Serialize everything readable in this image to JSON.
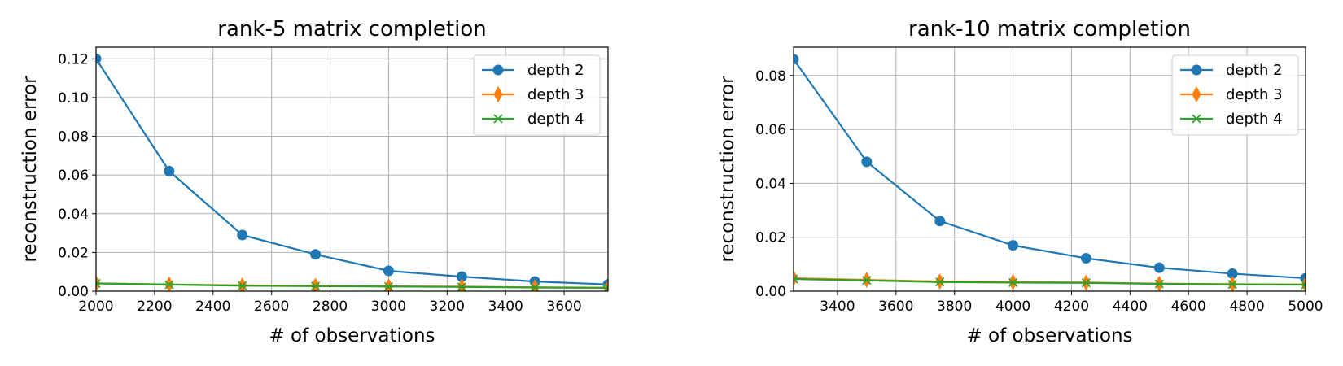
{
  "chart_data": [
    {
      "type": "line",
      "title": "rank-5 matrix completion",
      "xlabel": "# of observations",
      "ylabel": "reconstruction error",
      "xlim": [
        2000,
        3750
      ],
      "ylim": [
        0,
        0.126
      ],
      "xticks": [
        2000,
        2200,
        2400,
        2600,
        2800,
        3000,
        3200,
        3400,
        3600
      ],
      "xtick_labels": [
        "2000",
        "2200",
        "2400",
        "2600",
        "2800",
        "3000",
        "3200",
        "3400",
        "3600"
      ],
      "yticks": [
        0,
        0.02,
        0.04,
        0.06,
        0.08,
        0.1,
        0.12
      ],
      "ytick_labels": [
        "0.00",
        "0.02",
        "0.04",
        "0.06",
        "0.08",
        "0.10",
        "0.12"
      ],
      "grid": true,
      "legend": "top-right",
      "x": [
        2000,
        2250,
        2500,
        2750,
        3000,
        3250,
        3500,
        3750
      ],
      "series": [
        {
          "name": "depth 2",
          "color": "#1f77b4",
          "marker": "circle",
          "values": [
            0.12,
            0.062,
            0.029,
            0.019,
            0.0105,
            0.0075,
            0.005,
            0.0035
          ]
        },
        {
          "name": "depth 3",
          "color": "#ff7f0e",
          "marker": "thin-diamond",
          "values": [
            0.004,
            0.0035,
            0.003,
            0.0028,
            0.0025,
            0.0023,
            0.002,
            0.0018
          ]
        },
        {
          "name": "depth 4",
          "color": "#2ca02c",
          "marker": "x",
          "values": [
            0.004,
            0.0034,
            0.0028,
            0.0026,
            0.0024,
            0.0022,
            0.0019,
            0.0017
          ]
        }
      ]
    },
    {
      "type": "line",
      "title": "rank-10 matrix completion",
      "xlabel": "# of observations",
      "ylabel": "reconstruction error",
      "xlim": [
        3250,
        5000
      ],
      "ylim": [
        0,
        0.0905
      ],
      "xticks": [
        3400,
        3600,
        3800,
        4000,
        4200,
        4400,
        4600,
        4800,
        5000
      ],
      "xtick_labels": [
        "3400",
        "3600",
        "3800",
        "4000",
        "4200",
        "4400",
        "4600",
        "4800",
        "5000"
      ],
      "yticks": [
        0,
        0.02,
        0.04,
        0.06,
        0.08
      ],
      "ytick_labels": [
        "0.00",
        "0.02",
        "0.04",
        "0.06",
        "0.08"
      ],
      "grid": true,
      "legend": "top-right",
      "x": [
        3250,
        3500,
        3750,
        4000,
        4250,
        4500,
        4750,
        5000
      ],
      "series": [
        {
          "name": "depth 2",
          "color": "#1f77b4",
          "marker": "circle",
          "values": [
            0.086,
            0.048,
            0.026,
            0.017,
            0.0122,
            0.0087,
            0.0065,
            0.0048
          ]
        },
        {
          "name": "depth 3",
          "color": "#ff7f0e",
          "marker": "thin-diamond",
          "values": [
            0.0048,
            0.0042,
            0.0036,
            0.0034,
            0.0032,
            0.0028,
            0.0026,
            0.0025
          ]
        },
        {
          "name": "depth 4",
          "color": "#2ca02c",
          "marker": "x",
          "values": [
            0.0045,
            0.004,
            0.0034,
            0.0032,
            0.0031,
            0.0027,
            0.0025,
            0.0024
          ]
        }
      ]
    }
  ]
}
